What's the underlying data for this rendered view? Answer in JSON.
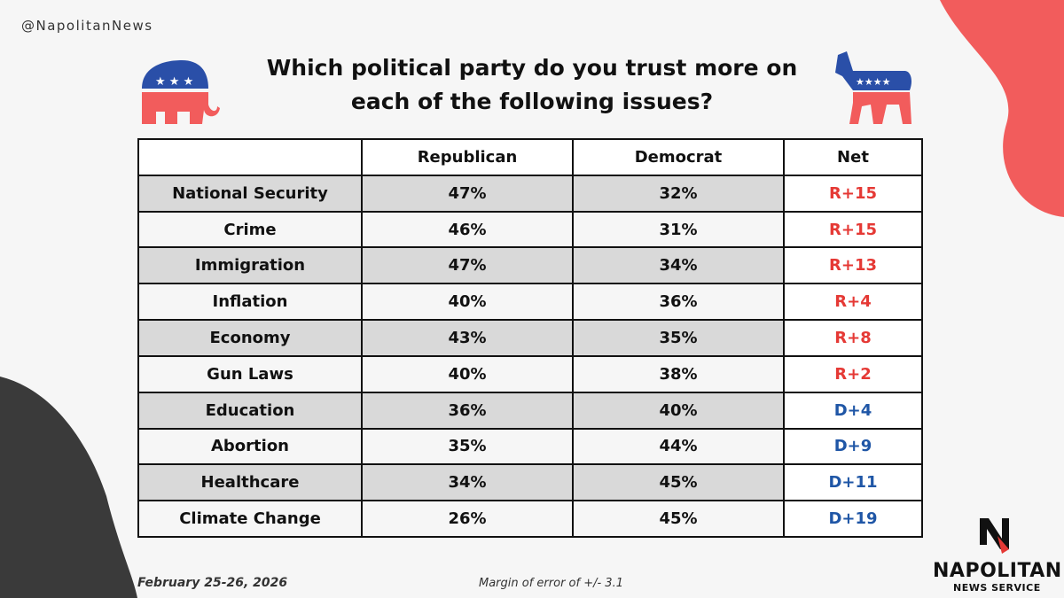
{
  "handle": "@NapolitanNews",
  "title_lines": [
    "Which political party do you trust more on",
    "each of the following issues?"
  ],
  "table": {
    "header": [
      "Republican",
      "Democrat",
      "Net"
    ],
    "rows": [
      [
        "National Security",
        "47%",
        "32%",
        "R+15"
      ],
      [
        "Crime",
        "46%",
        "31%",
        "R+15"
      ],
      [
        "Immigration",
        "47%",
        "34%",
        "R+13"
      ],
      [
        "Inflation",
        "40%",
        "36%",
        "R+4"
      ],
      [
        "Economy",
        "43%",
        "35%",
        "R+8"
      ],
      [
        "Gun Laws",
        "40%",
        "38%",
        "R+2"
      ],
      [
        "Education",
        "36%",
        "40%",
        "D+4"
      ],
      [
        "Abortion",
        "35%",
        "44%",
        "D+9"
      ],
      [
        "Healthcare",
        "34%",
        "45%",
        "D+11"
      ],
      [
        "Climate Change",
        "26%",
        "45%",
        "D+19"
      ]
    ]
  },
  "footer": {
    "date": "February 25-26, 2026",
    "margin": "Margin of error of +/- 3.1"
  },
  "logo": {
    "name": "NAPOLITAN",
    "tagline": "NEWS SERVICE"
  }
}
